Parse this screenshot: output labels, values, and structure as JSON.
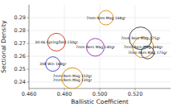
{
  "chart_data": {
    "type": "scatter",
    "xlabel": "Ballistic Coefficient",
    "ylabel": "Sectional Density",
    "labels": [
      "30-06 Springfield 150gr",
      "308 Win 168gr",
      "7mm Rem Mag 150gr\n7mm Rem Mag 130gr",
      "7mm Rem Mag 140gr",
      "7mm Rem Mag 168gr",
      "7mm Rem Mag 168gr",
      "7mm Rem Mag 175gr",
      "7mm Rem Mag 175gr"
    ],
    "x": [
      0.4755,
      0.4735,
      0.4845,
      0.4975,
      0.5035,
      0.5245,
      0.523,
      0.527
    ],
    "values": [
      0.271,
      0.254,
      0.243,
      0.267,
      0.29,
      0.267,
      0.274,
      0.263
    ],
    "sizes": [
      11,
      9,
      13,
      11,
      9,
      13,
      14,
      8
    ],
    "colors": [
      "#cc3311",
      "#3344cc",
      "#dd8800",
      "#8833aa",
      "#dd8800",
      "#dd8800",
      "#333333",
      "#333333"
    ],
    "xlim": [
      0.46,
      0.54
    ],
    "ylim": [
      0.235,
      0.3
    ],
    "xticks": [
      {
        "value": 0.46,
        "label": "0.460"
      },
      {
        "value": 0.48,
        "label": "0.480"
      },
      {
        "value": 0.5,
        "label": "0.500"
      },
      {
        "value": 0.52,
        "label": "0.520"
      }
    ],
    "yticks": [
      0.24,
      0.25,
      0.26,
      0.27,
      0.28,
      0.29
    ],
    "grid": true
  }
}
